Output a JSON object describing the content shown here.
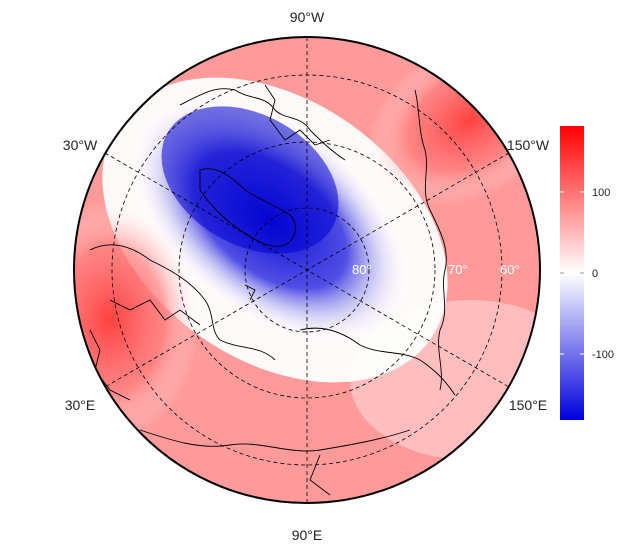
{
  "map": {
    "projection": "north-polar stereographic",
    "longitude_labels": [
      "90°W",
      "30°W",
      "150°W",
      "30°E",
      "150°E",
      "90°E"
    ],
    "latitude_labels": [
      "80°",
      "70°",
      "60°"
    ],
    "grid_style": "dashed",
    "coastlines": true
  },
  "colorbar": {
    "ticks": [
      "100",
      "0",
      "-100"
    ],
    "range": [
      -180,
      180
    ],
    "colors": {
      "low": "#0000dd",
      "mid": "#ffffff",
      "high": "#ff0000"
    }
  },
  "field": {
    "description_pattern": "negative anomaly centered over Canadian Arctic / pole, positive over Europe and North Pacific",
    "min_value": -180,
    "max_value": 150
  }
}
